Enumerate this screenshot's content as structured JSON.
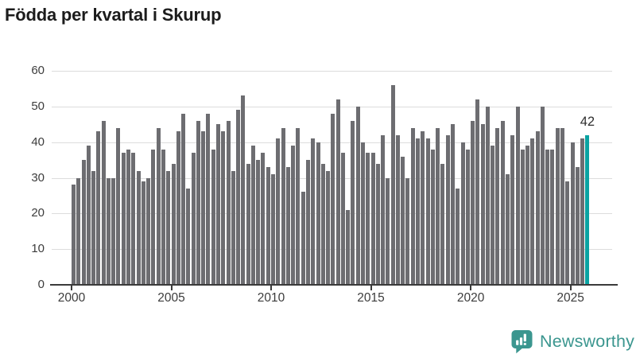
{
  "title": "Födda per kvartal i Skurup",
  "colors": {
    "bar": "#6d6d71",
    "highlight": "#0aa3a2",
    "grid": "#dcdcdc",
    "axis": "#3a3a3a",
    "tick_text": "#3c3c3c",
    "title_text": "#1c1c1c",
    "logo_teal": "#3b968f",
    "background": "#ffffff"
  },
  "chart_data": {
    "type": "bar",
    "title": "Födda per kvartal i Skurup",
    "x_frequency": "quarterly",
    "x_start": "2000-Q1",
    "x_end": "2025-Q4",
    "values": [
      28,
      30,
      35,
      39,
      32,
      43,
      46,
      30,
      30,
      44,
      37,
      38,
      37,
      32,
      29,
      30,
      38,
      44,
      38,
      32,
      34,
      43,
      48,
      27,
      37,
      46,
      43,
      48,
      38,
      45,
      43,
      46,
      32,
      49,
      53,
      34,
      39,
      35,
      37,
      33,
      31,
      41,
      44,
      33,
      39,
      44,
      26,
      35,
      41,
      40,
      34,
      32,
      48,
      52,
      37,
      21,
      46,
      50,
      40,
      37,
      37,
      34,
      42,
      30,
      56,
      42,
      36,
      30,
      44,
      41,
      43,
      41,
      38,
      44,
      34,
      42,
      45,
      27,
      40,
      38,
      46,
      52,
      45,
      50,
      39,
      44,
      46,
      31,
      42,
      50,
      38,
      39,
      41,
      43,
      50,
      38,
      38,
      44,
      44,
      29,
      40,
      33,
      41,
      42
    ],
    "highlight_last": true,
    "last_value_label": "42",
    "yticks": [
      0,
      10,
      20,
      30,
      40,
      50,
      60
    ],
    "xticks": [
      2000,
      2005,
      2010,
      2015,
      2020,
      2025
    ],
    "ylim": [
      0,
      60
    ],
    "grid": true,
    "legend": "none"
  },
  "annotation": {
    "last_value_label": "42"
  },
  "logo": {
    "text": "Newsworthy",
    "icon": "newsworthy-bar-chart-bubble-icon"
  }
}
